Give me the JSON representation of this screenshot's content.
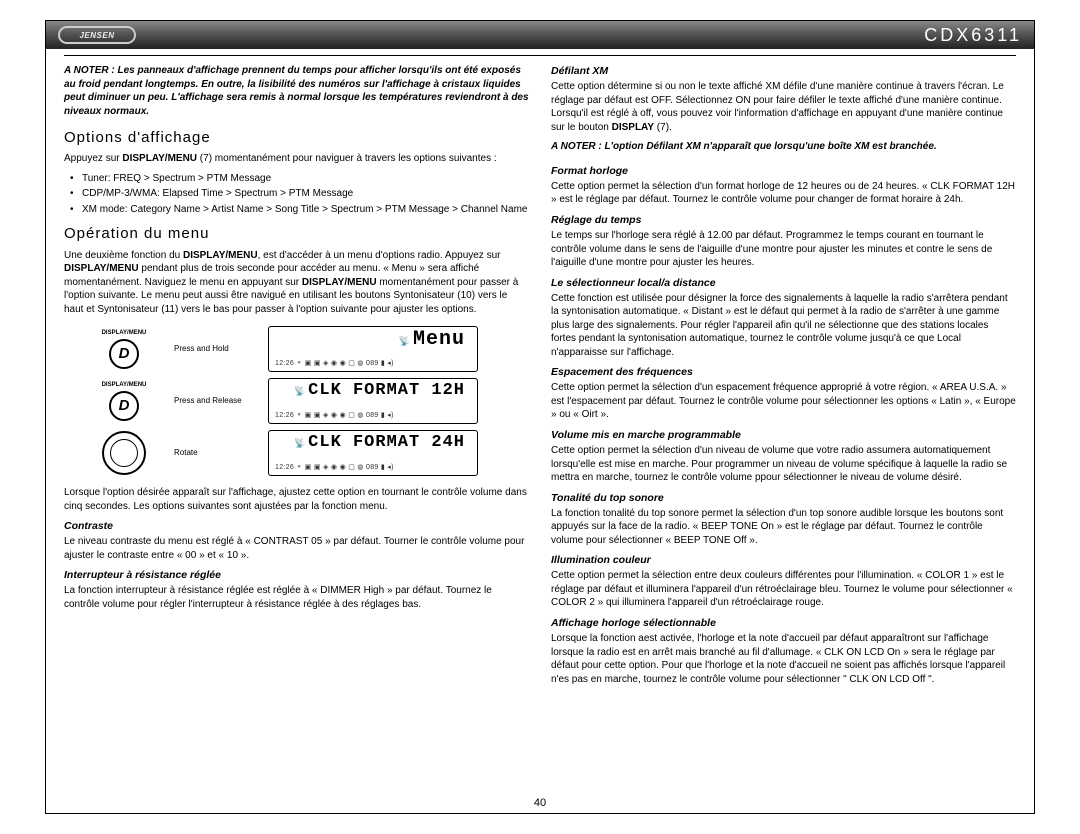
{
  "header": {
    "logo_text": "JENSEN",
    "model": "CDX6311"
  },
  "left": {
    "note": "A NOTER : Les panneaux d'affichage prennent du temps pour afficher lorsqu'ils ont été exposés au froid pendant longtemps. En outre, la lisibilité des numéros sur l'affichage à cristaux liquides peut diminuer un peu. L'affichage sera remis à normal lorsque les températures reviendront à des niveaux normaux.",
    "h_options": "Options d'affichage",
    "options_intro_a": "Appuyez sur ",
    "options_intro_b": "DISPLAY/MENU",
    "options_intro_c": " (7) momentanément pour naviguer à travers les options suivantes :",
    "bullets": [
      "Tuner: FREQ > Spectrum > PTM Message",
      "CDP/MP-3/WMA: Elapsed Time > Spectrum > PTM Message",
      "XM mode: Category Name > Artist Name > Song Title > Spectrum > PTM Message > Channel Name"
    ],
    "h_menu": "Opération du menu",
    "menu_para": "Une deuxième fonction du <b>DISPLAY/MENU</b>, est d'accéder à un menu d'options radio. Appuyez sur <b>DISPLAY/MENU</b> pendant plus de trois seconde pour accéder au menu. « Menu » sera affiché momentanément. Naviguez le menu  en appuyant sur <b>DISPLAY/MENU</b> momentanément pour passer à l'option suivante. Le menu peut aussi être navigué en utilisant les boutons Syntonisateur (10) vers le haut et Syntonisateur (11) vers le bas pour passer à l'option suivante pour ajuster les options.",
    "diagram": {
      "dm_small": "DISPLAY/MENU",
      "button_glyph": "D",
      "row1_action": "Press and Hold",
      "row2_action": "Press and Release",
      "row3_action": "Rotate",
      "lcd1_main": "Menu",
      "lcd2_main": "CLK FORMAT 12H",
      "lcd3_main": "CLK FORMAT 24H",
      "lcd_strip": "12:26 ⚬ ▣ ▣ ◈ ◉ ◉ ▢ ◍ 089 ▮ ◂)"
    },
    "after_diagram": "Lorsque l'option désirée apparaît sur l'affichage, ajustez cette option en tournant le contrôle volume dans cinq secondes. Les options suivantes sont ajustées par la fonction menu.",
    "sub_contraste": "Contraste",
    "contraste_body": "Le niveau contraste du menu est réglé à « CONTRAST 05 » par défaut. Tourner le contrôle volume pour ajuster le contraste entre « 00 » et « 10 ».",
    "sub_dimmer": "Interrupteur à résistance réglée",
    "dimmer_body": "La fonction interrupteur à résistance réglée est réglée à « DIMMER High » par défaut. Tournez le contrôle volume pour régler l'interrupteur à résistance réglée à des réglages bas."
  },
  "right": {
    "sub_xm": "Défilant XM",
    "xm_body": "Cette option détermine si ou non le texte affiché XM défile d'une manière continue à travers l'écran. Le réglage par défaut est OFF. Sélectionnez ON pour faire défiler le texte affiché d'une manière continue. Lorsqu'il est réglé à off, vous pouvez voir l'information d'affichage en appuyant d'une manière continue sur le bouton <b>DISPLAY</b> (7).",
    "xm_note": "A NOTER : L'option Défilant XM n'apparaît que lorsqu'une boîte XM est branchée.",
    "sub_clock": "Format horloge",
    "clock_body": "Cette option permet la sélection d'un format horloge de 12 heures ou de 24 heures. « CLK FORMAT 12H » est le réglage par défaut. Tournez le contrôle volume pour changer de format horaire à 24h.",
    "sub_time": "Réglage du temps",
    "time_body": "Le temps sur l'horloge sera réglé à 12.00 par défaut. Programmez le temps courant en tournant le contrôle volume dans le sens de l'aiguille d'une montre pour ajuster les minutes et contre le sens de l'aiguille d'une montre pour ajuster les heures.",
    "sub_local": "Le sélectionneur local/a distance",
    "local_body": "Cette fonction est utilisée pour désigner la force des signalements à laquelle la radio s'arrêtera pendant la syntonisation automatique. « Distant » est le défaut qui permet à la radio de s'arrêter à une gamme plus large des signalements. Pour régler l'appareil afin qu'il ne sélectionne que des stations locales fortes pendant la syntonisation automatique, tournez le contrôle volume jusqu'à ce que Local n'apparaisse sur l'affichage.",
    "sub_freq": "Espacement des fréquences",
    "freq_body": "Cette option permet la sélection d'un espacement fréquence approprié à votre région. « AREA U.S.A. » est l'espacement par défaut. Tournez le contrôle volume pour sélectionner les options « Latin », « Europe » ou « Oirt ».",
    "sub_vol": "Volume mis en marche programmable",
    "vol_body": "Cette option permet la sélection d'un niveau de volume que votre radio assumera automatiquement lorsqu'elle est mise en marche. Pour programmer un niveau de volume spécifique à laquelle la radio se mettra en marche, tournez le contrôle volume ppour sélectionner le niveau de volume désiré.",
    "sub_beep": "Tonalité du top sonore",
    "beep_body": "La fonction tonalité du top sonore permet la sélection d'un top sonore audible lorsque les boutons sont appuyés sur la face de la radio. « BEEP TONE On » est le réglage par défaut. Tournez le contrôle volume pour sélectionner « BEEP TONE Off ».",
    "sub_illum": "Illumination couleur",
    "illum_body": "Cette option permet la sélection entre deux couleurs différentes pour l'illumination. « COLOR 1 » est le réglage par défaut et illuminera l'appareil d'un rétroéclairage bleu. Tournez le volume pour sélectionner « COLOR 2 » qui illuminera l'appareil d'un rétroéclairage rouge.",
    "sub_clksel": "Affichage horloge sélectionnable",
    "clksel_body": "Lorsque la fonction aest activée, l'horloge et la note d'accueil par défaut apparaîtront sur l'affichage lorsque la radio est en arrêt mais branché au fil d'allumage. « CLK ON LCD On » sera le réglage par défaut pour cette option. Pour que l'horloge et la note d'accueil ne soient pas affichés lorsque l'appareil n'es pas en marche, tournez le contrôle volume pour sélectionner \" CLK ON LCD Off \"."
  },
  "page_number": "40"
}
